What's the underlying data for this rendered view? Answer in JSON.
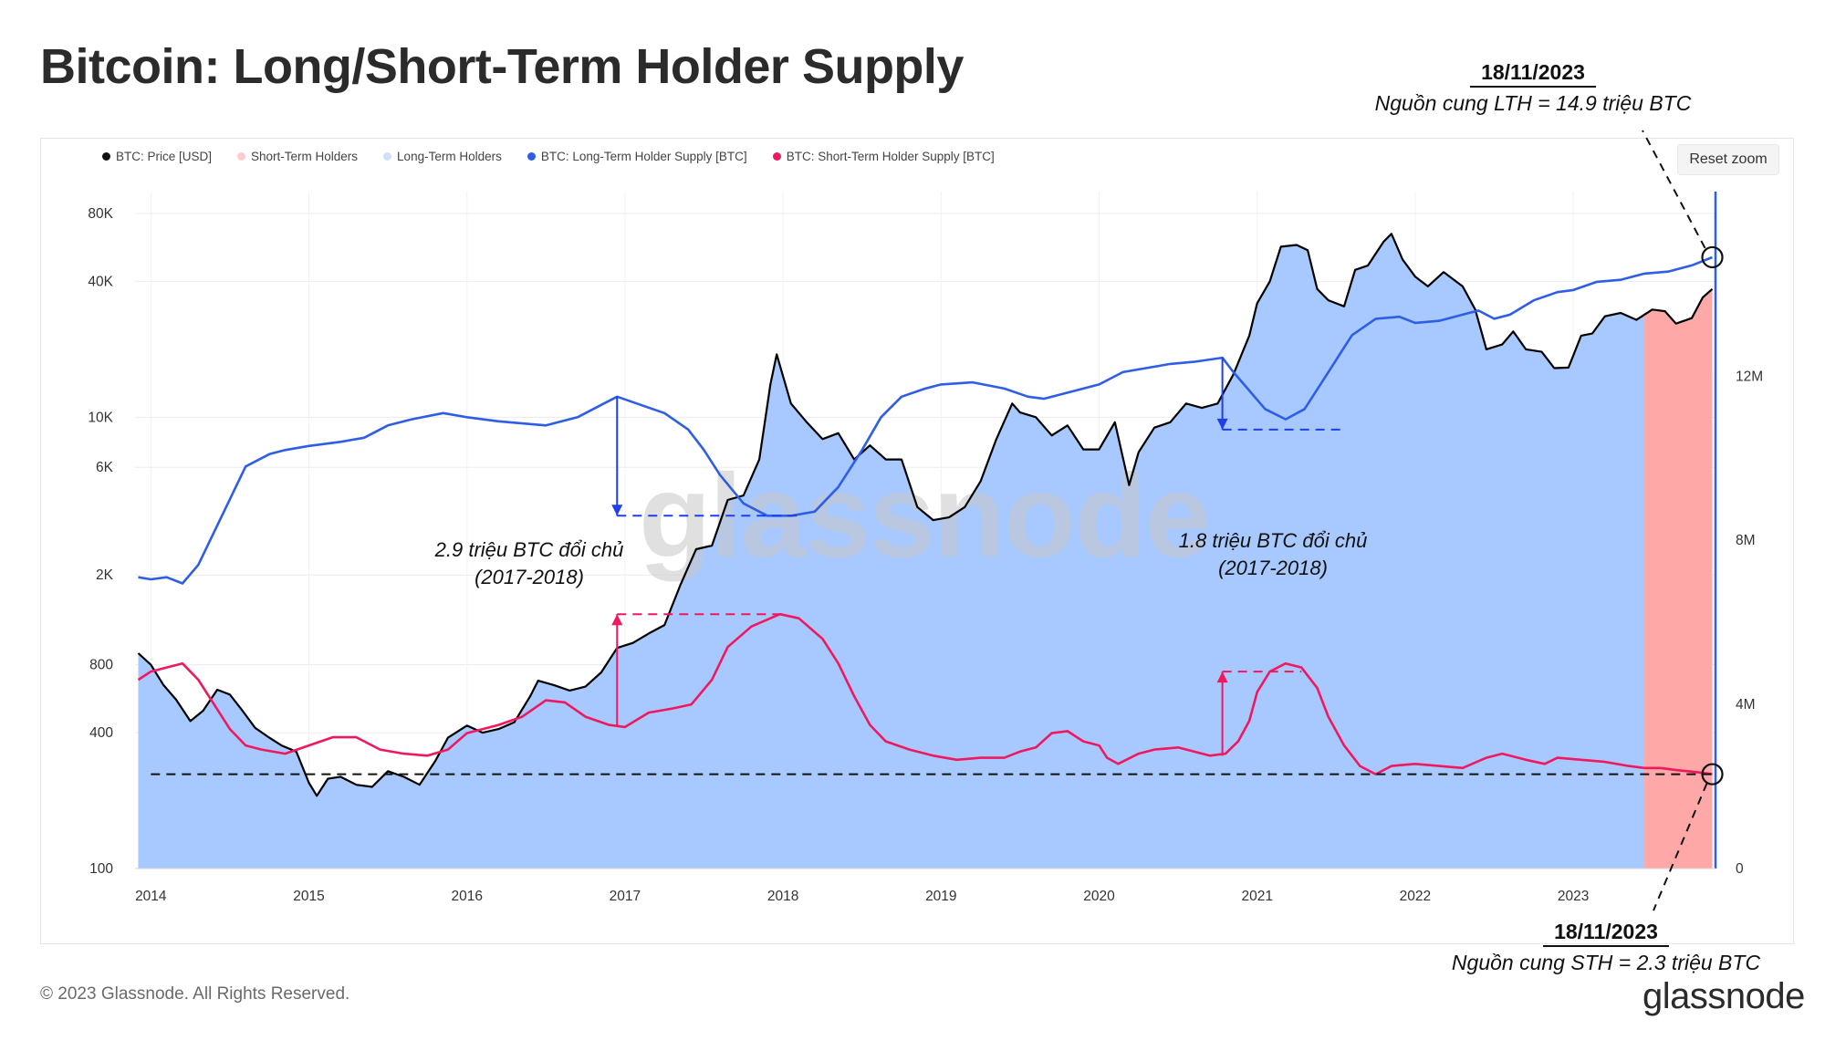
{
  "page": {
    "title": "Bitcoin: Long/Short-Term Holder Supply",
    "copyright": "© 2023 Glassnode. All Rights Reserved.",
    "brand": "glassnode",
    "watermark": "glassnode",
    "reset_zoom_label": "Reset zoom"
  },
  "annotations": {
    "lth": {
      "date": "18/11/2023",
      "text": "Nguồn cung LTH = 14.9 triệu BTC"
    },
    "sth": {
      "date": "18/11/2023",
      "text": "Nguồn cung STH = 2.3 triệu BTC"
    },
    "change1": {
      "line1": "2.9 triệu BTC đổi chủ",
      "line2": "(2017-2018)"
    },
    "change2": {
      "line1": "1.8 triệu BTC đổi chủ",
      "line2": "(2017-2018)"
    }
  },
  "colors": {
    "price": "#000000",
    "sth_area": "#ffa3a3",
    "lth_area": "#a2c6ff",
    "lth_line": "#2f5ee6",
    "sth_line": "#f0185e",
    "arrow_blue": "#1f3fe8",
    "arrow_pink": "#f0185e"
  },
  "chart_data": {
    "type": "line",
    "legend_position": "top-left",
    "legend": [
      {
        "name": "BTC: Price [USD]",
        "color": "#111111"
      },
      {
        "name": "Short-Term Holders",
        "color": "#ffcccc"
      },
      {
        "name": "Long-Term Holders",
        "color": "#cfe0fb"
      },
      {
        "name": "BTC: Long-Term Holder Supply [BTC]",
        "color": "#2f5ee6"
      },
      {
        "name": "BTC: Short-Term Holder Supply [BTC]",
        "color": "#f0185e"
      }
    ],
    "x_range": [
      2013.9,
      2023.9
    ],
    "x_ticks": [
      2014,
      2015,
      2016,
      2017,
      2018,
      2019,
      2020,
      2021,
      2022,
      2023
    ],
    "x_tick_labels": [
      "2014",
      "2015",
      "2016",
      "2017",
      "2018",
      "2019",
      "2020",
      "2021",
      "2022",
      "2023"
    ],
    "y_left": {
      "scale": "log",
      "range": [
        100,
        100000
      ],
      "ticks": [
        100,
        400,
        800,
        2000,
        6000,
        10000,
        40000,
        80000
      ],
      "tick_labels": [
        "100",
        "400",
        "800",
        "2K",
        "6K",
        "10K",
        "40K",
        "80K"
      ]
    },
    "y_right": {
      "scale": "linear",
      "range": [
        0,
        16500000
      ],
      "ticks": [
        0,
        4000000,
        8000000,
        12000000
      ],
      "tick_labels": [
        "0",
        "4M",
        "8M",
        "12M"
      ]
    },
    "grid": true,
    "sth_area_start": 2023.45,
    "price_usd": [
      [
        2013.92,
        900
      ],
      [
        2014.0,
        800
      ],
      [
        2014.08,
        650
      ],
      [
        2014.16,
        560
      ],
      [
        2014.25,
        450
      ],
      [
        2014.33,
        500
      ],
      [
        2014.42,
        620
      ],
      [
        2014.5,
        590
      ],
      [
        2014.58,
        500
      ],
      [
        2014.66,
        420
      ],
      [
        2014.75,
        380
      ],
      [
        2014.83,
        350
      ],
      [
        2014.92,
        330
      ],
      [
        2015.0,
        240
      ],
      [
        2015.05,
        210
      ],
      [
        2015.12,
        250
      ],
      [
        2015.2,
        255
      ],
      [
        2015.3,
        235
      ],
      [
        2015.4,
        230
      ],
      [
        2015.5,
        270
      ],
      [
        2015.6,
        255
      ],
      [
        2015.7,
        235
      ],
      [
        2015.8,
        300
      ],
      [
        2015.88,
        380
      ],
      [
        2016.0,
        430
      ],
      [
        2016.1,
        400
      ],
      [
        2016.2,
        415
      ],
      [
        2016.3,
        445
      ],
      [
        2016.4,
        580
      ],
      [
        2016.45,
        680
      ],
      [
        2016.55,
        650
      ],
      [
        2016.65,
        615
      ],
      [
        2016.75,
        640
      ],
      [
        2016.85,
        740
      ],
      [
        2016.95,
        950
      ],
      [
        2017.05,
        1000
      ],
      [
        2017.15,
        1100
      ],
      [
        2017.25,
        1200
      ],
      [
        2017.35,
        1800
      ],
      [
        2017.45,
        2600
      ],
      [
        2017.55,
        2700
      ],
      [
        2017.65,
        4300
      ],
      [
        2017.75,
        4500
      ],
      [
        2017.85,
        6500
      ],
      [
        2017.92,
        14000
      ],
      [
        2017.96,
        19000
      ],
      [
        2018.05,
        11500
      ],
      [
        2018.15,
        9500
      ],
      [
        2018.25,
        8000
      ],
      [
        2018.35,
        8500
      ],
      [
        2018.45,
        6500
      ],
      [
        2018.55,
        7500
      ],
      [
        2018.65,
        6500
      ],
      [
        2018.75,
        6500
      ],
      [
        2018.85,
        4000
      ],
      [
        2018.95,
        3500
      ],
      [
        2019.05,
        3600
      ],
      [
        2019.15,
        4000
      ],
      [
        2019.25,
        5200
      ],
      [
        2019.35,
        8000
      ],
      [
        2019.45,
        11500
      ],
      [
        2019.5,
        10500
      ],
      [
        2019.6,
        10000
      ],
      [
        2019.7,
        8300
      ],
      [
        2019.8,
        9200
      ],
      [
        2019.9,
        7200
      ],
      [
        2020.0,
        7200
      ],
      [
        2020.1,
        9500
      ],
      [
        2020.19,
        5000
      ],
      [
        2020.25,
        7000
      ],
      [
        2020.35,
        9000
      ],
      [
        2020.45,
        9500
      ],
      [
        2020.55,
        11500
      ],
      [
        2020.65,
        11000
      ],
      [
        2020.75,
        11500
      ],
      [
        2020.85,
        15500
      ],
      [
        2020.95,
        23000
      ],
      [
        2021.0,
        32000
      ],
      [
        2021.08,
        40000
      ],
      [
        2021.15,
        57000
      ],
      [
        2021.25,
        58000
      ],
      [
        2021.32,
        55000
      ],
      [
        2021.38,
        37000
      ],
      [
        2021.45,
        33000
      ],
      [
        2021.55,
        31000
      ],
      [
        2021.62,
        45000
      ],
      [
        2021.7,
        47000
      ],
      [
        2021.8,
        60000
      ],
      [
        2021.85,
        65000
      ],
      [
        2021.92,
        50000
      ],
      [
        2022.0,
        42000
      ],
      [
        2022.08,
        38000
      ],
      [
        2022.18,
        44000
      ],
      [
        2022.3,
        38000
      ],
      [
        2022.38,
        30000
      ],
      [
        2022.45,
        20000
      ],
      [
        2022.55,
        21000
      ],
      [
        2022.62,
        24000
      ],
      [
        2022.7,
        20000
      ],
      [
        2022.8,
        19500
      ],
      [
        2022.88,
        16500
      ],
      [
        2022.97,
        16600
      ],
      [
        2023.05,
        23000
      ],
      [
        2023.12,
        23500
      ],
      [
        2023.2,
        28000
      ],
      [
        2023.3,
        29000
      ],
      [
        2023.4,
        27000
      ],
      [
        2023.5,
        30000
      ],
      [
        2023.58,
        29500
      ],
      [
        2023.65,
        26000
      ],
      [
        2023.75,
        27500
      ],
      [
        2023.82,
        34000
      ],
      [
        2023.88,
        37000
      ]
    ],
    "lth_supply_btc": [
      [
        2013.92,
        7100000
      ],
      [
        2014.0,
        7050000
      ],
      [
        2014.1,
        7100000
      ],
      [
        2014.2,
        6950000
      ],
      [
        2014.3,
        7400000
      ],
      [
        2014.4,
        8200000
      ],
      [
        2014.5,
        9000000
      ],
      [
        2014.6,
        9800000
      ],
      [
        2014.75,
        10100000
      ],
      [
        2014.85,
        10200000
      ],
      [
        2015.0,
        10300000
      ],
      [
        2015.2,
        10400000
      ],
      [
        2015.35,
        10500000
      ],
      [
        2015.5,
        10800000
      ],
      [
        2015.65,
        10950000
      ],
      [
        2015.85,
        11100000
      ],
      [
        2016.0,
        11000000
      ],
      [
        2016.2,
        10900000
      ],
      [
        2016.35,
        10850000
      ],
      [
        2016.5,
        10800000
      ],
      [
        2016.7,
        11000000
      ],
      [
        2016.85,
        11300000
      ],
      [
        2016.95,
        11500000
      ],
      [
        2017.1,
        11300000
      ],
      [
        2017.25,
        11100000
      ],
      [
        2017.4,
        10700000
      ],
      [
        2017.5,
        10200000
      ],
      [
        2017.6,
        9600000
      ],
      [
        2017.75,
        8900000
      ],
      [
        2017.9,
        8600000
      ],
      [
        2018.05,
        8600000
      ],
      [
        2018.2,
        8700000
      ],
      [
        2018.35,
        9300000
      ],
      [
        2018.5,
        10200000
      ],
      [
        2018.62,
        11000000
      ],
      [
        2018.75,
        11500000
      ],
      [
        2018.9,
        11700000
      ],
      [
        2019.0,
        11800000
      ],
      [
        2019.2,
        11850000
      ],
      [
        2019.4,
        11700000
      ],
      [
        2019.55,
        11500000
      ],
      [
        2019.65,
        11450000
      ],
      [
        2019.8,
        11600000
      ],
      [
        2020.0,
        11800000
      ],
      [
        2020.15,
        12100000
      ],
      [
        2020.3,
        12200000
      ],
      [
        2020.45,
        12300000
      ],
      [
        2020.6,
        12350000
      ],
      [
        2020.78,
        12450000
      ],
      [
        2020.85,
        12100000
      ],
      [
        2020.95,
        11650000
      ],
      [
        2021.05,
        11200000
      ],
      [
        2021.18,
        10950000
      ],
      [
        2021.3,
        11200000
      ],
      [
        2021.45,
        12100000
      ],
      [
        2021.6,
        13000000
      ],
      [
        2021.75,
        13400000
      ],
      [
        2021.9,
        13450000
      ],
      [
        2022.0,
        13300000
      ],
      [
        2022.15,
        13350000
      ],
      [
        2022.3,
        13500000
      ],
      [
        2022.4,
        13600000
      ],
      [
        2022.5,
        13400000
      ],
      [
        2022.6,
        13500000
      ],
      [
        2022.75,
        13850000
      ],
      [
        2022.9,
        14050000
      ],
      [
        2023.0,
        14100000
      ],
      [
        2023.15,
        14300000
      ],
      [
        2023.3,
        14350000
      ],
      [
        2023.45,
        14500000
      ],
      [
        2023.6,
        14550000
      ],
      [
        2023.75,
        14700000
      ],
      [
        2023.88,
        14900000
      ]
    ],
    "sth_supply_btc": [
      [
        2013.92,
        4600000
      ],
      [
        2014.0,
        4800000
      ],
      [
        2014.1,
        4900000
      ],
      [
        2014.2,
        5000000
      ],
      [
        2014.3,
        4600000
      ],
      [
        2014.4,
        4000000
      ],
      [
        2014.5,
        3400000
      ],
      [
        2014.6,
        3000000
      ],
      [
        2014.7,
        2900000
      ],
      [
        2014.85,
        2800000
      ],
      [
        2015.0,
        3000000
      ],
      [
        2015.15,
        3200000
      ],
      [
        2015.3,
        3200000
      ],
      [
        2015.45,
        2900000
      ],
      [
        2015.6,
        2800000
      ],
      [
        2015.75,
        2750000
      ],
      [
        2015.88,
        2900000
      ],
      [
        2016.0,
        3300000
      ],
      [
        2016.2,
        3500000
      ],
      [
        2016.35,
        3700000
      ],
      [
        2016.5,
        4100000
      ],
      [
        2016.62,
        4050000
      ],
      [
        2016.75,
        3700000
      ],
      [
        2016.9,
        3500000
      ],
      [
        2017.0,
        3450000
      ],
      [
        2017.15,
        3800000
      ],
      [
        2017.3,
        3900000
      ],
      [
        2017.42,
        4000000
      ],
      [
        2017.55,
        4600000
      ],
      [
        2017.65,
        5400000
      ],
      [
        2017.8,
        5900000
      ],
      [
        2017.98,
        6200000
      ],
      [
        2018.1,
        6100000
      ],
      [
        2018.25,
        5600000
      ],
      [
        2018.35,
        5000000
      ],
      [
        2018.45,
        4200000
      ],
      [
        2018.55,
        3500000
      ],
      [
        2018.65,
        3100000
      ],
      [
        2018.8,
        2900000
      ],
      [
        2018.95,
        2750000
      ],
      [
        2019.1,
        2650000
      ],
      [
        2019.25,
        2700000
      ],
      [
        2019.4,
        2700000
      ],
      [
        2019.5,
        2850000
      ],
      [
        2019.6,
        2950000
      ],
      [
        2019.7,
        3300000
      ],
      [
        2019.8,
        3350000
      ],
      [
        2019.9,
        3100000
      ],
      [
        2020.0,
        3000000
      ],
      [
        2020.05,
        2700000
      ],
      [
        2020.12,
        2550000
      ],
      [
        2020.25,
        2800000
      ],
      [
        2020.35,
        2900000
      ],
      [
        2020.5,
        2950000
      ],
      [
        2020.6,
        2850000
      ],
      [
        2020.7,
        2750000
      ],
      [
        2020.8,
        2800000
      ],
      [
        2020.88,
        3100000
      ],
      [
        2020.95,
        3600000
      ],
      [
        2021.0,
        4300000
      ],
      [
        2021.08,
        4800000
      ],
      [
        2021.18,
        5000000
      ],
      [
        2021.28,
        4900000
      ],
      [
        2021.38,
        4400000
      ],
      [
        2021.45,
        3700000
      ],
      [
        2021.55,
        3000000
      ],
      [
        2021.65,
        2500000
      ],
      [
        2021.75,
        2300000
      ],
      [
        2021.85,
        2500000
      ],
      [
        2022.0,
        2550000
      ],
      [
        2022.15,
        2500000
      ],
      [
        2022.3,
        2450000
      ],
      [
        2022.45,
        2700000
      ],
      [
        2022.55,
        2800000
      ],
      [
        2022.7,
        2650000
      ],
      [
        2022.82,
        2550000
      ],
      [
        2022.9,
        2700000
      ],
      [
        2023.05,
        2650000
      ],
      [
        2023.2,
        2600000
      ],
      [
        2023.35,
        2500000
      ],
      [
        2023.45,
        2450000
      ],
      [
        2023.55,
        2450000
      ],
      [
        2023.65,
        2400000
      ],
      [
        2023.78,
        2350000
      ],
      [
        2023.88,
        2300000
      ]
    ],
    "reference_levels": {
      "lth_2017_drop": {
        "from_x": 2016.95,
        "from_btc": 11500000,
        "to_btc": 8600000,
        "line_to_x": 2018.1
      },
      "sth_2017_rise": {
        "from_x": 2016.95,
        "from_btc": 3450000,
        "to_btc": 6200000,
        "line_to_x": 2018.0
      },
      "lth_2021_drop": {
        "from_x": 2020.78,
        "from_btc": 12450000,
        "to_btc": 10700000,
        "line_to_x": 2021.55
      },
      "sth_2021_rise": {
        "from_x": 2020.78,
        "from_btc": 2750000,
        "to_btc": 4800000,
        "line_to_x": 2021.28
      },
      "sth_current": {
        "btc": 2300000,
        "from_x": 2014.0,
        "to_x": 2023.88
      }
    },
    "markers": [
      {
        "series": "lth",
        "x": 2023.88,
        "value": 14900000
      },
      {
        "series": "sth",
        "x": 2023.88,
        "value": 2300000
      }
    ]
  }
}
